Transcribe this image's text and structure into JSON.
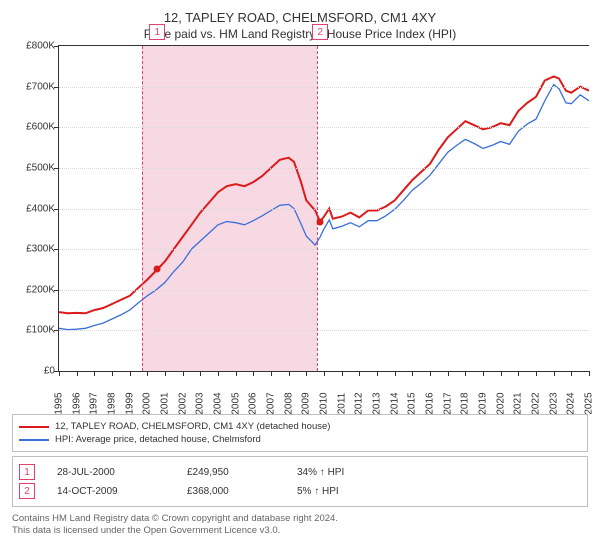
{
  "title_line1": "12, TAPLEY ROAD, CHELMSFORD, CM1 4XY",
  "title_line2": "Price paid vs. HM Land Registry's House Price Index (HPI)",
  "chart": {
    "background_color": "#ffffff",
    "grid_color": "#d9d9d9",
    "axis_color": "#333333",
    "xmin": 1995,
    "xmax": 2025,
    "ymin": 0,
    "ymax": 800000,
    "ytick_step": 100000,
    "yticks": [
      {
        "v": 0,
        "label": "£0"
      },
      {
        "v": 100000,
        "label": "£100K"
      },
      {
        "v": 200000,
        "label": "£200K"
      },
      {
        "v": 300000,
        "label": "£300K"
      },
      {
        "v": 400000,
        "label": "£400K"
      },
      {
        "v": 500000,
        "label": "£500K"
      },
      {
        "v": 600000,
        "label": "£600K"
      },
      {
        "v": 700000,
        "label": "£700K"
      },
      {
        "v": 800000,
        "label": "£800K"
      }
    ],
    "xticks": [
      1995,
      1996,
      1997,
      1998,
      1999,
      2000,
      2001,
      2002,
      2003,
      2004,
      2005,
      2006,
      2007,
      2008,
      2009,
      2010,
      2011,
      2012,
      2013,
      2014,
      2015,
      2016,
      2017,
      2018,
      2019,
      2020,
      2021,
      2022,
      2023,
      2024,
      2025
    ],
    "band": {
      "color": "#f7d9e3",
      "from": 1999.7,
      "to": 2009.6,
      "line_color": "#e83e6a"
    },
    "series": {
      "s1": {
        "color": "#dd1a1a",
        "width": 2,
        "points": [
          [
            1995,
            145000
          ],
          [
            1995.5,
            142000
          ],
          [
            1996,
            143000
          ],
          [
            1996.5,
            142000
          ],
          [
            1997,
            150000
          ],
          [
            1997.5,
            155000
          ],
          [
            1998,
            165000
          ],
          [
            1998.5,
            175000
          ],
          [
            1999,
            185000
          ],
          [
            1999.5,
            205000
          ],
          [
            2000,
            225000
          ],
          [
            2000.56,
            249950
          ],
          [
            2001,
            270000
          ],
          [
            2001.5,
            300000
          ],
          [
            2002,
            330000
          ],
          [
            2002.5,
            360000
          ],
          [
            2003,
            390000
          ],
          [
            2003.5,
            415000
          ],
          [
            2004,
            440000
          ],
          [
            2004.5,
            455000
          ],
          [
            2005,
            460000
          ],
          [
            2005.5,
            455000
          ],
          [
            2006,
            465000
          ],
          [
            2006.5,
            480000
          ],
          [
            2007,
            500000
          ],
          [
            2007.5,
            520000
          ],
          [
            2008,
            525000
          ],
          [
            2008.3,
            515000
          ],
          [
            2008.7,
            465000
          ],
          [
            2009,
            420000
          ],
          [
            2009.5,
            395000
          ],
          [
            2009.78,
            368000
          ],
          [
            2010,
            380000
          ],
          [
            2010.3,
            400000
          ],
          [
            2010.5,
            375000
          ],
          [
            2011,
            380000
          ],
          [
            2011.5,
            390000
          ],
          [
            2012,
            378000
          ],
          [
            2012.5,
            395000
          ],
          [
            2013,
            395000
          ],
          [
            2013.5,
            405000
          ],
          [
            2014,
            420000
          ],
          [
            2014.5,
            445000
          ],
          [
            2015,
            470000
          ],
          [
            2015.5,
            490000
          ],
          [
            2016,
            510000
          ],
          [
            2016.5,
            545000
          ],
          [
            2017,
            575000
          ],
          [
            2017.5,
            595000
          ],
          [
            2018,
            615000
          ],
          [
            2018.5,
            605000
          ],
          [
            2019,
            595000
          ],
          [
            2019.5,
            600000
          ],
          [
            2020,
            610000
          ],
          [
            2020.5,
            605000
          ],
          [
            2021,
            640000
          ],
          [
            2021.5,
            660000
          ],
          [
            2022,
            675000
          ],
          [
            2022.5,
            715000
          ],
          [
            2023,
            725000
          ],
          [
            2023.3,
            720000
          ],
          [
            2023.7,
            690000
          ],
          [
            2024,
            685000
          ],
          [
            2024.5,
            700000
          ],
          [
            2025,
            690000
          ]
        ]
      },
      "s2": {
        "color": "#3a6fd8",
        "width": 1.3,
        "points": [
          [
            1995,
            105000
          ],
          [
            1995.5,
            102000
          ],
          [
            1996,
            103000
          ],
          [
            1996.5,
            105000
          ],
          [
            1997,
            112000
          ],
          [
            1997.5,
            118000
          ],
          [
            1998,
            128000
          ],
          [
            1998.5,
            138000
          ],
          [
            1999,
            150000
          ],
          [
            1999.5,
            168000
          ],
          [
            2000,
            185000
          ],
          [
            2000.5,
            200000
          ],
          [
            2001,
            218000
          ],
          [
            2001.5,
            245000
          ],
          [
            2002,
            268000
          ],
          [
            2002.5,
            300000
          ],
          [
            2003,
            320000
          ],
          [
            2003.5,
            340000
          ],
          [
            2004,
            360000
          ],
          [
            2004.5,
            368000
          ],
          [
            2005,
            365000
          ],
          [
            2005.5,
            360000
          ],
          [
            2006,
            370000
          ],
          [
            2006.5,
            382000
          ],
          [
            2007,
            395000
          ],
          [
            2007.5,
            408000
          ],
          [
            2008,
            410000
          ],
          [
            2008.3,
            400000
          ],
          [
            2008.7,
            362000
          ],
          [
            2009,
            332000
          ],
          [
            2009.5,
            310000
          ],
          [
            2009.78,
            330000
          ],
          [
            2010,
            350000
          ],
          [
            2010.3,
            372000
          ],
          [
            2010.5,
            350000
          ],
          [
            2011,
            356000
          ],
          [
            2011.5,
            365000
          ],
          [
            2012,
            355000
          ],
          [
            2012.5,
            370000
          ],
          [
            2013,
            370000
          ],
          [
            2013.5,
            382000
          ],
          [
            2014,
            398000
          ],
          [
            2014.5,
            420000
          ],
          [
            2015,
            445000
          ],
          [
            2015.5,
            462000
          ],
          [
            2016,
            482000
          ],
          [
            2016.5,
            510000
          ],
          [
            2017,
            538000
          ],
          [
            2017.5,
            555000
          ],
          [
            2018,
            570000
          ],
          [
            2018.5,
            560000
          ],
          [
            2019,
            548000
          ],
          [
            2019.5,
            555000
          ],
          [
            2020,
            565000
          ],
          [
            2020.5,
            558000
          ],
          [
            2021,
            590000
          ],
          [
            2021.5,
            608000
          ],
          [
            2022,
            620000
          ],
          [
            2022.5,
            665000
          ],
          [
            2023,
            705000
          ],
          [
            2023.3,
            695000
          ],
          [
            2023.7,
            660000
          ],
          [
            2024,
            658000
          ],
          [
            2024.5,
            680000
          ],
          [
            2025,
            665000
          ]
        ]
      }
    },
    "sale_markers": [
      {
        "n": "1",
        "color": "#e83e6a",
        "x": 2000.56,
        "y": 249950
      },
      {
        "n": "2",
        "color": "#e83e6a",
        "x": 2009.78,
        "y": 368000
      }
    ],
    "marker_dot_color": "#dd1a1a"
  },
  "legend": {
    "s1": {
      "swatch": "#dd1a1a",
      "label": "12, TAPLEY ROAD, CHELMSFORD, CM1 4XY (detached house)"
    },
    "s2": {
      "swatch": "#3a6fd8",
      "label": "HPI: Average price, detached house, Chelmsford"
    }
  },
  "sales": [
    {
      "n": "1",
      "color": "#e83e6a",
      "date": "28-JUL-2000",
      "price": "£249,950",
      "diff": "34% ↑ HPI"
    },
    {
      "n": "2",
      "color": "#e83e6a",
      "date": "14-OCT-2009",
      "price": "£368,000",
      "diff": "5% ↑ HPI"
    }
  ],
  "footer_line1": "Contains HM Land Registry data © Crown copyright and database right 2024.",
  "footer_line2": "This data is licensed under the Open Government Licence v3.0."
}
